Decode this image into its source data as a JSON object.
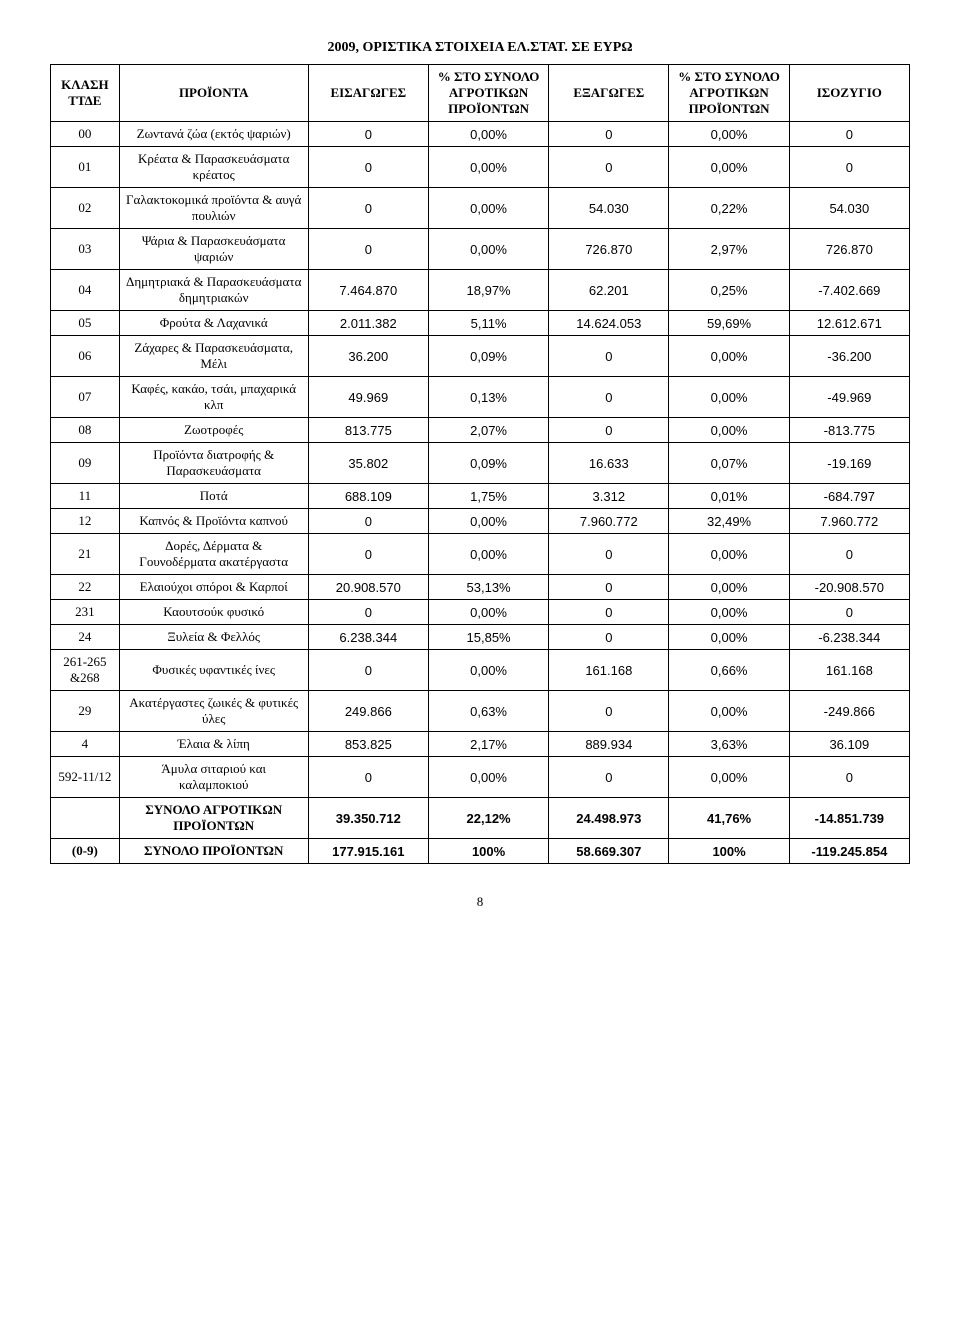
{
  "title": "2009, ΟΡΙΣΤΙΚΑ ΣΤΟΙΧΕΙΑ ΕΛ.ΣΤΑΤ. ΣΕ ΕΥΡΩ",
  "headers": {
    "code": "ΚΛΑΣΗ ΤΤΔΕ",
    "prod": "ΠΡΟΪΟΝΤΑ",
    "imp": "ΕΙΣΑΓΩΓΕΣ",
    "pct1": "% ΣΤΟ ΣΥΝΟΛΟ ΑΓΡΟΤΙΚΩΝ ΠΡΟΪΟΝΤΩΝ",
    "exp": "ΕΞΑΓΩΓΕΣ",
    "pct2": "% ΣΤΟ ΣΥΝΟΛΟ ΑΓΡΟΤΙΚΩΝ ΠΡΟΪΟΝΤΩΝ",
    "bal": "ΙΣΟΖΥΓΙΟ"
  },
  "rows": [
    {
      "code": "00",
      "prod": "Ζωντανά ζώα (εκτός ψαριών)",
      "imp": "0",
      "pct1": "0,00%",
      "exp": "0",
      "pct2": "0,00%",
      "bal": "0"
    },
    {
      "code": "01",
      "prod": "Κρέατα & Παρασκευάσματα κρέατος",
      "imp": "0",
      "pct1": "0,00%",
      "exp": "0",
      "pct2": "0,00%",
      "bal": "0"
    },
    {
      "code": "02",
      "prod": "Γαλακτοκομικά προϊόντα & αυγά πουλιών",
      "imp": "0",
      "pct1": "0,00%",
      "exp": "54.030",
      "pct2": "0,22%",
      "bal": "54.030"
    },
    {
      "code": "03",
      "prod": "Ψάρια & Παρασκευάσματα ψαριών",
      "imp": "0",
      "pct1": "0,00%",
      "exp": "726.870",
      "pct2": "2,97%",
      "bal": "726.870"
    },
    {
      "code": "04",
      "prod": "Δημητριακά & Παρασκευάσματα δημητριακών",
      "imp": "7.464.870",
      "pct1": "18,97%",
      "exp": "62.201",
      "pct2": "0,25%",
      "bal": "-7.402.669"
    },
    {
      "code": "05",
      "prod": "Φρούτα & Λαχανικά",
      "imp": "2.011.382",
      "pct1": "5,11%",
      "exp": "14.624.053",
      "pct2": "59,69%",
      "bal": "12.612.671"
    },
    {
      "code": "06",
      "prod": "Ζάχαρες & Παρασκευάσματα, Μέλι",
      "imp": "36.200",
      "pct1": "0,09%",
      "exp": "0",
      "pct2": "0,00%",
      "bal": "-36.200"
    },
    {
      "code": "07",
      "prod": "Καφές, κακάο, τσάι, μπαχαρικά κλπ",
      "imp": "49.969",
      "pct1": "0,13%",
      "exp": "0",
      "pct2": "0,00%",
      "bal": "-49.969"
    },
    {
      "code": "08",
      "prod": "Ζωοτροφές",
      "imp": "813.775",
      "pct1": "2,07%",
      "exp": "0",
      "pct2": "0,00%",
      "bal": "-813.775"
    },
    {
      "code": "09",
      "prod": "Προϊόντα διατροφής & Παρασκευάσματα",
      "imp": "35.802",
      "pct1": "0,09%",
      "exp": "16.633",
      "pct2": "0,07%",
      "bal": "-19.169"
    },
    {
      "code": "11",
      "prod": "Ποτά",
      "imp": "688.109",
      "pct1": "1,75%",
      "exp": "3.312",
      "pct2": "0,01%",
      "bal": "-684.797"
    },
    {
      "code": "12",
      "prod": "Καπνός & Προϊόντα καπνού",
      "imp": "0",
      "pct1": "0,00%",
      "exp": "7.960.772",
      "pct2": "32,49%",
      "bal": "7.960.772"
    },
    {
      "code": "21",
      "prod": "Δορές, Δέρματα & Γουνοδέρματα ακατέργαστα",
      "imp": "0",
      "pct1": "0,00%",
      "exp": "0",
      "pct2": "0,00%",
      "bal": "0"
    },
    {
      "code": "22",
      "prod": "Ελαιούχοι σπόροι & Καρποί",
      "imp": "20.908.570",
      "pct1": "53,13%",
      "exp": "0",
      "pct2": "0,00%",
      "bal": "-20.908.570"
    },
    {
      "code": "231",
      "prod": "Καουτσούκ φυσικό",
      "imp": "0",
      "pct1": "0,00%",
      "exp": "0",
      "pct2": "0,00%",
      "bal": "0"
    },
    {
      "code": "24",
      "prod": "Ξυλεία & Φελλός",
      "imp": "6.238.344",
      "pct1": "15,85%",
      "exp": "0",
      "pct2": "0,00%",
      "bal": "-6.238.344"
    },
    {
      "code": "261-265 &268",
      "prod": "Φυσικές υφαντικές ίνες",
      "imp": "0",
      "pct1": "0,00%",
      "exp": "161.168",
      "pct2": "0,66%",
      "bal": "161.168"
    },
    {
      "code": "29",
      "prod": "Ακατέργαστες ζωικές & φυτικές ύλες",
      "imp": "249.866",
      "pct1": "0,63%",
      "exp": "0",
      "pct2": "0,00%",
      "bal": "-249.866"
    },
    {
      "code": "4",
      "prod": "Έλαια & λίπη",
      "imp": "853.825",
      "pct1": "2,17%",
      "exp": "889.934",
      "pct2": "3,63%",
      "bal": "36.109"
    },
    {
      "code": "592-11/12",
      "prod": "Άμυλα σιταριού και καλαμποκιού",
      "imp": "0",
      "pct1": "0,00%",
      "exp": "0",
      "pct2": "0,00%",
      "bal": "0"
    }
  ],
  "sum1": {
    "code": "",
    "prod": "ΣΥΝΟΛΟ ΑΓΡΟΤΙΚΩΝ ΠΡΟΪΟΝΤΩΝ",
    "imp": "39.350.712",
    "pct1": "22,12%",
    "exp": "24.498.973",
    "pct2": "41,76%",
    "bal": "-14.851.739"
  },
  "sum2": {
    "code": "(0-9)",
    "prod": "ΣΥΝΟΛΟ ΠΡΟΪΟΝΤΩΝ",
    "imp": "177.915.161",
    "pct1": "100%",
    "exp": "58.669.307",
    "pct2": "100%",
    "bal": "-119.245.854"
  },
  "pageNumber": "8"
}
